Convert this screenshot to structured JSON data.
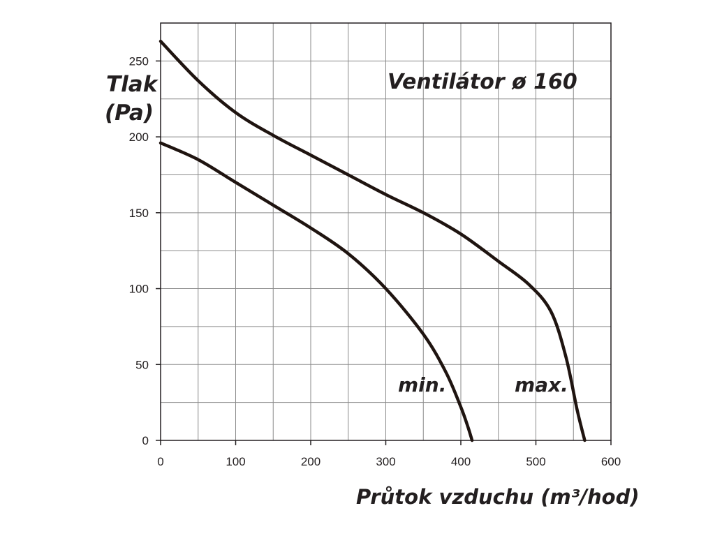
{
  "chart_data": {
    "type": "line",
    "title": "Ventilátor ø 160",
    "xlabel": "Průtok vzduchu (m³/hod)",
    "ylabel_line1": "Tlak",
    "ylabel_line2": "(Pa)",
    "xlim": [
      0,
      600
    ],
    "ylim": [
      0,
      275
    ],
    "x_ticks": [
      0,
      100,
      200,
      300,
      400,
      500,
      600
    ],
    "y_ticks": [
      0,
      50,
      100,
      150,
      200,
      250
    ],
    "x_tick_labels": [
      "0",
      "100",
      "200",
      "300",
      "400",
      "500",
      "600"
    ],
    "y_tick_labels": [
      "0",
      "50",
      "100",
      "150",
      "200",
      "250"
    ],
    "x_grid_step": 50,
    "y_grid_step": 25,
    "grid": true,
    "line_color": "#1f1410",
    "series": [
      {
        "name": "min.",
        "x": [
          0,
          50,
          100,
          150,
          200,
          250,
          300,
          350,
          380,
          400,
          410,
          415
        ],
        "y": [
          196,
          185,
          170,
          155,
          140,
          123,
          100,
          70,
          45,
          22,
          8,
          0
        ]
      },
      {
        "name": "max.",
        "x": [
          0,
          50,
          100,
          150,
          200,
          250,
          300,
          350,
          400,
          450,
          490,
          520,
          540,
          555,
          565
        ],
        "y": [
          263,
          237,
          216,
          201,
          188,
          175,
          162,
          150,
          136,
          118,
          103,
          85,
          55,
          20,
          0
        ]
      }
    ]
  }
}
